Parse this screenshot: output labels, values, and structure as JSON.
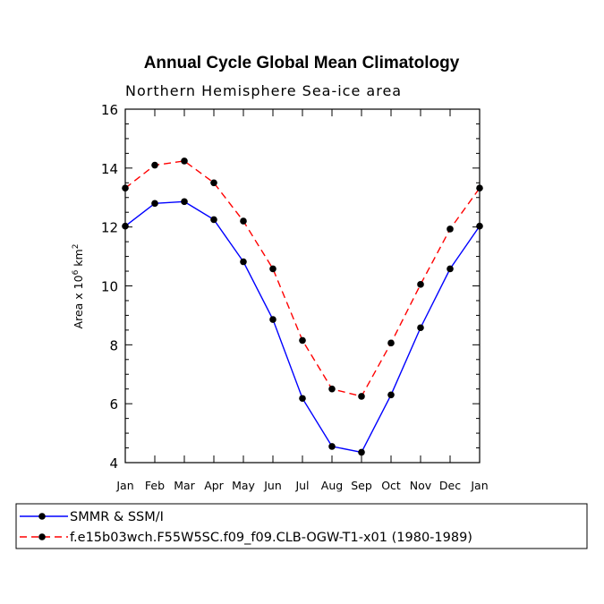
{
  "chart_data": {
    "type": "line",
    "title": "Annual Cycle Global Mean Climatology",
    "subtitle": "Northern Hemisphere Sea-ice area",
    "ylabel": "Area x 10",
    "ylabel_exponent": "6",
    "ylabel_unit": "km",
    "ylabel_unit_exponent": "2",
    "xlabel": "",
    "categories": [
      "Jan",
      "Feb",
      "Mar",
      "Apr",
      "May",
      "Jun",
      "Jul",
      "Aug",
      "Sep",
      "Oct",
      "Nov",
      "Dec",
      "Jan"
    ],
    "ylim": [
      4,
      16
    ],
    "yticks": [
      "4",
      "6",
      "8",
      "10",
      "12",
      "14",
      "16"
    ],
    "grid": false,
    "legend_position": "bottom",
    "series": [
      {
        "name": "SMMR & SSM/I",
        "color": "#0000ff",
        "dash": "solid",
        "values": [
          12.03,
          12.8,
          12.86,
          12.25,
          10.82,
          8.86,
          6.18,
          4.55,
          4.35,
          6.3,
          8.58,
          10.58,
          12.03
        ]
      },
      {
        "name": "f.e15b03wch.F55W5SC.f09_f09.CLB-OGW-T1-x01 (1980-1989)",
        "color": "#ff0000",
        "dash": "dashed",
        "values": [
          13.32,
          14.1,
          14.24,
          13.5,
          12.2,
          10.58,
          8.15,
          6.5,
          6.25,
          8.06,
          10.05,
          11.93,
          13.32
        ]
      }
    ]
  }
}
